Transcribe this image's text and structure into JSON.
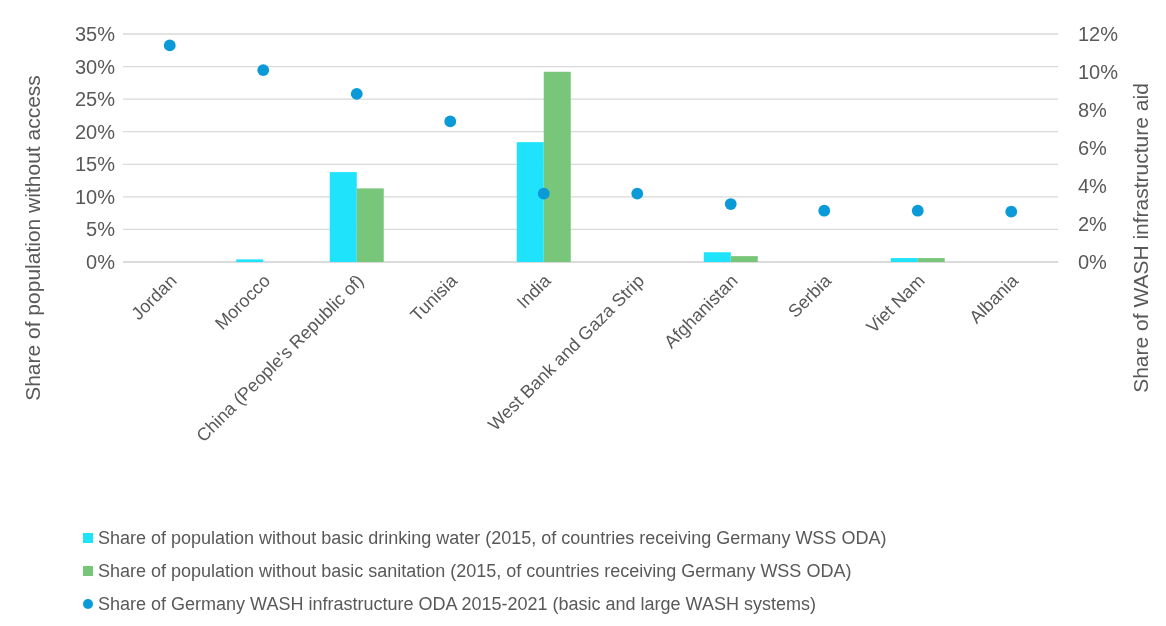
{
  "chart_data": {
    "type": "bar",
    "ylabel": "Share of population without access",
    "y2label": "Share of WASH infrastructure aid",
    "categories": [
      "Jordan",
      "Morocco",
      "China (People's Republic of)",
      "Tunisia",
      "India",
      "West Bank and Gaza Strip",
      "Afghanistan",
      "Serbia",
      "Viet Nam",
      "Albania"
    ],
    "series": [
      {
        "name": "Share of population without basic drinking water (2015, of countries receiving Germany WSS ODA)",
        "color": "#1ee3fb",
        "values": [
          0,
          0.4,
          13.8,
          0,
          18.4,
          0,
          1.5,
          0,
          0.6,
          0
        ]
      },
      {
        "name": "Share of population without basic sanitation (2015, of countries receiving Germany WSS ODA)",
        "color": "#78c67a",
        "values": [
          0,
          0,
          11.3,
          0,
          29.2,
          0,
          0.9,
          0,
          0.6,
          0
        ]
      },
      {
        "name": "Share of Germany WASH infrastructure ODA 2015-2021 (basic and large WASH systems)",
        "type": "scatter",
        "axis": "y2",
        "color": "#0b9ad8",
        "values": [
          11.4,
          10.1,
          8.85,
          7.4,
          3.6,
          3.6,
          3.05,
          2.7,
          2.7,
          2.65
        ]
      }
    ],
    "ylim": [
      0,
      35
    ],
    "yticks": [
      {
        "value": 0,
        "label": "0%"
      },
      {
        "value": 5,
        "label": "5%"
      },
      {
        "value": 10,
        "label": "10%"
      },
      {
        "value": 15,
        "label": "15%"
      },
      {
        "value": 20,
        "label": "20%"
      },
      {
        "value": 25,
        "label": "25%"
      },
      {
        "value": 30,
        "label": "30%"
      },
      {
        "value": 35,
        "label": "35%"
      }
    ],
    "y2lim": [
      0,
      12
    ],
    "y2ticks": [
      {
        "value": 0,
        "label": "0%"
      },
      {
        "value": 2,
        "label": "2%"
      },
      {
        "value": 4,
        "label": "4%"
      },
      {
        "value": 6,
        "label": "6%"
      },
      {
        "value": 8,
        "label": "8%"
      },
      {
        "value": 10,
        "label": "10%"
      },
      {
        "value": 12,
        "label": "12%"
      }
    ],
    "grid": "y",
    "legend": "bottom",
    "marker": "circle"
  }
}
